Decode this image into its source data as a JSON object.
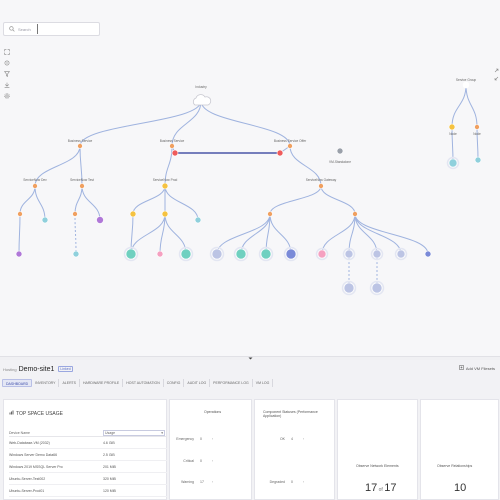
{
  "search": {
    "placeholder": "Search"
  },
  "graph": {
    "root_label": "Industry",
    "level1": [
      "Business Service",
      "Business Service",
      "Business Service Offer"
    ],
    "level2": [
      "ServiceNow Dev",
      "ServiceNow Test",
      "ServiceNow Prod",
      "ServiceNow Gateway"
    ],
    "orphan_label": "VM-Standalone",
    "side_labels": [
      "Service Group",
      "Node",
      "Node"
    ]
  },
  "panel": {
    "prefix": "Hosting",
    "title": "Demo-site1",
    "tag": "Linked",
    "right_action": "Add VM Filesets",
    "tabs": [
      "DASHBOARD",
      "INVENTORY",
      "ALERTS",
      "HARDWARE PROFILE",
      "HOST AUTOMATION",
      "CONFIG",
      "AUDIT LOG",
      "PERFORMANCE LOG",
      "VM LOG"
    ],
    "active_tab": 0
  },
  "top_usage": {
    "title": "TOP SPACE USAGE",
    "columns": [
      "Device Name",
      "Usage"
    ],
    "rows": [
      [
        "Web-Database-VM (2032)",
        "4.6 GiB"
      ],
      [
        "Windows Server Demo Data66",
        "2.5 GiB"
      ],
      [
        "Windows 2019 MSSQL Server Pro",
        "201 MiB"
      ],
      [
        "Ubuntu-Server-Test002",
        "320 MiB"
      ],
      [
        "Ubuntu-Server-Prod01",
        "120 MiB"
      ]
    ]
  },
  "operations": {
    "title": "Operations",
    "items": [
      {
        "label": "Emergency",
        "value": "0"
      },
      {
        "label": "Critical",
        "value": "0"
      },
      {
        "label": "Warning",
        "value": "17"
      }
    ]
  },
  "compliance": {
    "title": "Component Statuses (Performance Application)",
    "items": [
      {
        "label": "OK",
        "value": "4"
      },
      {
        "label": "Degraded",
        "value": "0"
      }
    ]
  },
  "network": {
    "title": "Observe Network Elements",
    "value": "17",
    "total": "17"
  },
  "relationships": {
    "title": "Observe Relationships",
    "value": "10"
  },
  "colors": {
    "accent": "#5a6fc6",
    "edge": "#9fb3df",
    "edge_dark": "#4a56a8"
  }
}
